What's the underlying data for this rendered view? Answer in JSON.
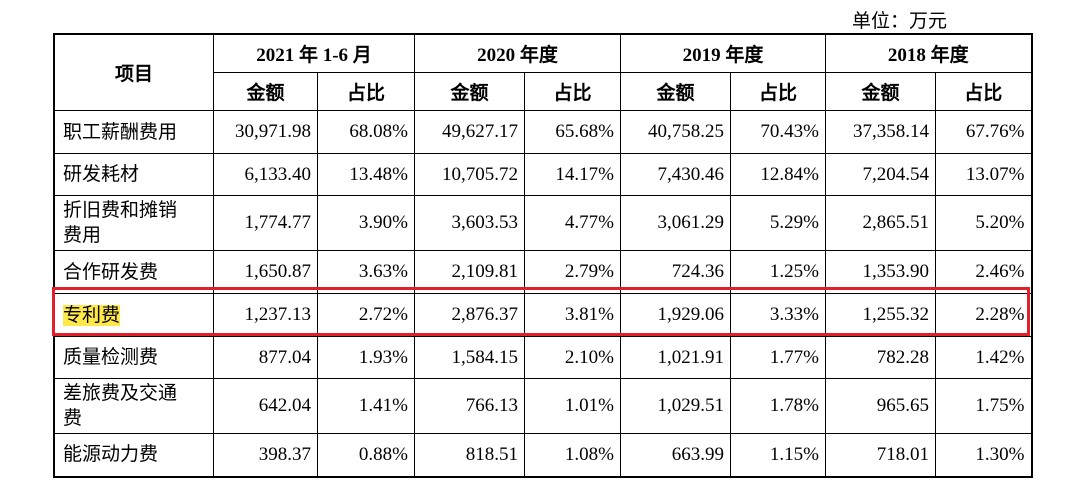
{
  "unit_label": "单位：万元",
  "header": {
    "item": "项目",
    "periods": [
      "2021 年 1-6 月",
      "2020 年度",
      "2019 年度",
      "2018 年度"
    ],
    "amount": "金额",
    "ratio": "占比"
  },
  "rows": [
    {
      "name": "职工薪酬费用",
      "values": [
        "30,971.98",
        "68.08%",
        "49,627.17",
        "65.68%",
        "40,758.25",
        "70.43%",
        "37,358.14",
        "67.76%"
      ]
    },
    {
      "name": "研发耗材",
      "values": [
        "6,133.40",
        "13.48%",
        "10,705.72",
        "14.17%",
        "7,430.46",
        "12.84%",
        "7,204.54",
        "13.07%"
      ]
    },
    {
      "name": "折旧费和摊销费用",
      "values": [
        "1,774.77",
        "3.90%",
        "3,603.53",
        "4.77%",
        "3,061.29",
        "5.29%",
        "2,865.51",
        "5.20%"
      ]
    },
    {
      "name": "合作研发费",
      "values": [
        "1,650.87",
        "3.63%",
        "2,109.81",
        "2.79%",
        "724.36",
        "1.25%",
        "1,353.90",
        "2.46%"
      ]
    },
    {
      "name": "专利费",
      "values": [
        "1,237.13",
        "2.72%",
        "2,876.37",
        "3.81%",
        "1,929.06",
        "3.33%",
        "1,255.32",
        "2.28%"
      ]
    },
    {
      "name": "质量检测费",
      "values": [
        "877.04",
        "1.93%",
        "1,584.15",
        "2.10%",
        "1,021.91",
        "1.77%",
        "782.28",
        "1.42%"
      ]
    },
    {
      "name": "差旅费及交通费",
      "values": [
        "642.04",
        "1.41%",
        "766.13",
        "1.01%",
        "1,029.51",
        "1.78%",
        "965.65",
        "1.75%"
      ]
    },
    {
      "name": "能源动力费",
      "values": [
        "398.37",
        "0.88%",
        "818.51",
        "1.08%",
        "663.99",
        "1.15%",
        "718.01",
        "1.30%"
      ]
    }
  ],
  "highlight_color": "#ffe94a",
  "box_color": "#e0202a"
}
